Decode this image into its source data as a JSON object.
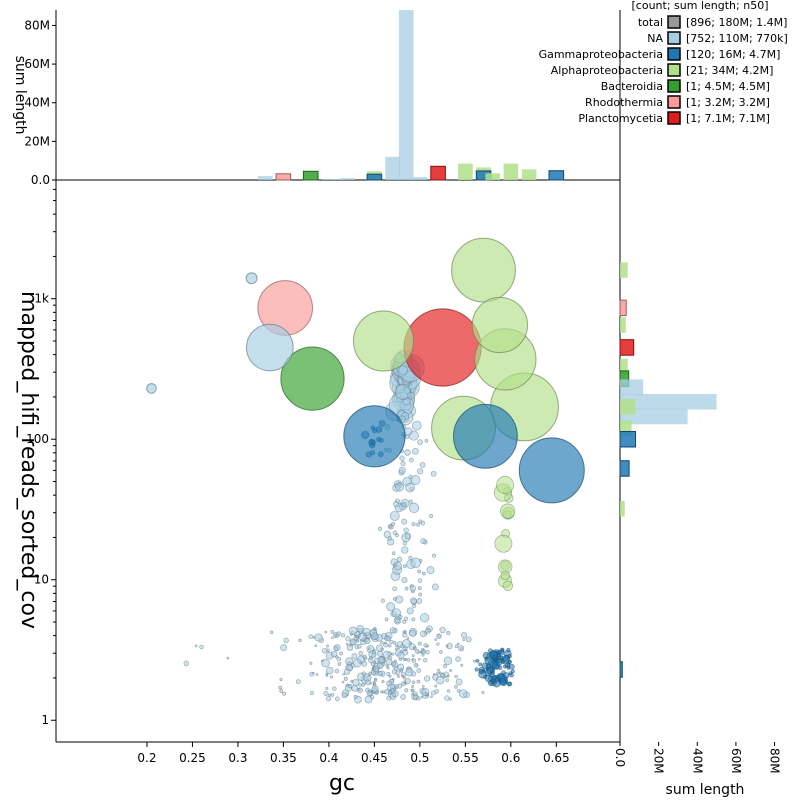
{
  "chart_data": {
    "type": "scatter",
    "title": "",
    "main": {
      "xlabel": "gc",
      "ylabel": "mapped_hifi_reads_sorted_cov",
      "xlim": [
        0.1,
        0.72
      ],
      "ylim_log": [
        0.7,
        7000
      ],
      "x_ticks": [
        "0.2",
        "0.25",
        "0.3",
        "0.35",
        "0.4",
        "0.45",
        "0.5",
        "0.55",
        "0.6",
        "0.65"
      ],
      "y_ticks": [
        "1",
        "10",
        "100",
        "1k"
      ],
      "y_tick_values": [
        1,
        10,
        100,
        1000
      ]
    },
    "top_histogram": {
      "ylabel": "sum length",
      "ylim": [
        0,
        88
      ],
      "y_ticks": [
        "0.0",
        "20M",
        "40M",
        "60M",
        "80M"
      ],
      "y_tick_values": [
        0,
        20,
        40,
        60,
        80
      ],
      "bins": [
        {
          "gc": 0.33,
          "value": 2.0,
          "series": "NA"
        },
        {
          "gc": 0.35,
          "value": 3.2,
          "series": "Rhodothermia"
        },
        {
          "gc": 0.38,
          "value": 4.5,
          "series": "Bacteroidia"
        },
        {
          "gc": 0.4,
          "value": 0.5,
          "series": "NA"
        },
        {
          "gc": 0.41,
          "value": 0.5,
          "series": "NA"
        },
        {
          "gc": 0.42,
          "value": 1.0,
          "series": "NA"
        },
        {
          "gc": 0.45,
          "value": 4.5,
          "series": "Alphaproteobacteria"
        },
        {
          "gc": 0.45,
          "value": 3.0,
          "series": "Gammaproteobacteria"
        },
        {
          "gc": 0.47,
          "value": 12.0,
          "series": "NA"
        },
        {
          "gc": 0.485,
          "value": 88.0,
          "series": "NA"
        },
        {
          "gc": 0.5,
          "value": 1.5,
          "series": "NA"
        },
        {
          "gc": 0.52,
          "value": 7.1,
          "series": "Planctomycetia"
        },
        {
          "gc": 0.55,
          "value": 8.5,
          "series": "Alphaproteobacteria"
        },
        {
          "gc": 0.57,
          "value": 6.5,
          "series": "Alphaproteobacteria"
        },
        {
          "gc": 0.57,
          "value": 4.7,
          "series": "Gammaproteobacteria"
        },
        {
          "gc": 0.58,
          "value": 3.5,
          "series": "Alphaproteobacteria"
        },
        {
          "gc": 0.6,
          "value": 8.5,
          "series": "Alphaproteobacteria"
        },
        {
          "gc": 0.62,
          "value": 5.5,
          "series": "Alphaproteobacteria"
        },
        {
          "gc": 0.65,
          "value": 4.8,
          "series": "Gammaproteobacteria"
        }
      ]
    },
    "right_histogram": {
      "xlabel": "sum length",
      "xlim": [
        0,
        88
      ],
      "x_ticks": [
        "0.0",
        "20M",
        "40M",
        "60M",
        "80M"
      ],
      "x_tick_values": [
        0,
        20,
        40,
        60,
        80
      ],
      "bins": [
        {
          "cov": 1600,
          "value": 4.0,
          "series": "Alphaproteobacteria"
        },
        {
          "cov": 860,
          "value": 3.2,
          "series": "Rhodothermia"
        },
        {
          "cov": 650,
          "value": 3.0,
          "series": "Alphaproteobacteria"
        },
        {
          "cov": 450,
          "value": 7.1,
          "series": "Planctomycetia"
        },
        {
          "cov": 330,
          "value": 4.0,
          "series": "Alphaproteobacteria"
        },
        {
          "cov": 270,
          "value": 4.5,
          "series": "Bacteroidia"
        },
        {
          "cov": 235,
          "value": 12.0,
          "series": "NA"
        },
        {
          "cov": 185,
          "value": 50.0,
          "series": "NA"
        },
        {
          "cov": 145,
          "value": 35.0,
          "series": "NA"
        },
        {
          "cov": 170,
          "value": 8.0,
          "series": "Alphaproteobacteria"
        },
        {
          "cov": 120,
          "value": 6.0,
          "series": "Alphaproteobacteria"
        },
        {
          "cov": 100,
          "value": 8.0,
          "series": "Gammaproteobacteria"
        },
        {
          "cov": 62,
          "value": 4.7,
          "series": "Gammaproteobacteria"
        },
        {
          "cov": 32,
          "value": 2.5,
          "series": "Alphaproteobacteria"
        },
        {
          "cov": 2.3,
          "value": 1.2,
          "series": "Gammaproteobacteria"
        }
      ]
    },
    "legend": {
      "header": "[count; sum length; n50]",
      "position": "top-right",
      "entries": [
        {
          "name": "total",
          "stats": "[896; 180M; 1.4M]"
        },
        {
          "name": "NA",
          "stats": "[752; 110M; 770k]"
        },
        {
          "name": "Gammaproteobacteria",
          "stats": "[120; 16M; 4.7M]"
        },
        {
          "name": "Alphaproteobacteria",
          "stats": "[21; 34M; 4.2M]"
        },
        {
          "name": "Bacteroidia",
          "stats": "[1; 4.5M; 4.5M]"
        },
        {
          "name": "Rhodothermia",
          "stats": "[1; 3.2M; 3.2M]"
        },
        {
          "name": "Planctomycetia",
          "stats": "[1; 7.1M; 7.1M]"
        }
      ]
    },
    "series_colors": {
      "total": "#999999",
      "NA": "#a6cee3",
      "Gammaproteobacteria": "#1f78b4",
      "Alphaproteobacteria": "#b2df8a",
      "Bacteroidia": "#33a02c",
      "Rhodothermia": "#fb9a99",
      "Planctomycetia": "#e31a1c"
    },
    "large_points": [
      {
        "series": "Alphaproteobacteria",
        "gc": 0.57,
        "cov": 1600,
        "size_mb": 4.6
      },
      {
        "series": "Rhodothermia",
        "gc": 0.352,
        "cov": 860,
        "size_mb": 3.2
      },
      {
        "series": "Alphaproteobacteria",
        "gc": 0.588,
        "cov": 650,
        "size_mb": 3.3
      },
      {
        "series": "NA",
        "gc": 0.335,
        "cov": 450,
        "size_mb": 2.2
      },
      {
        "series": "Alphaproteobacteria",
        "gc": 0.46,
        "cov": 500,
        "size_mb": 4.0
      },
      {
        "series": "Planctomycetia",
        "gc": 0.525,
        "cov": 450,
        "size_mb": 7.1
      },
      {
        "series": "Alphaproteobacteria",
        "gc": 0.594,
        "cov": 370,
        "size_mb": 4.2
      },
      {
        "series": "Bacteroidia",
        "gc": 0.382,
        "cov": 270,
        "size_mb": 4.5
      },
      {
        "series": "Alphaproteobacteria",
        "gc": 0.615,
        "cov": 170,
        "size_mb": 5.3
      },
      {
        "series": "Alphaproteobacteria",
        "gc": 0.548,
        "cov": 120,
        "size_mb": 4.6
      },
      {
        "series": "Gammaproteobacteria",
        "gc": 0.45,
        "cov": 105,
        "size_mb": 4.2
      },
      {
        "series": "Gammaproteobacteria",
        "gc": 0.572,
        "cov": 105,
        "size_mb": 4.6
      },
      {
        "series": "Gammaproteobacteria",
        "gc": 0.645,
        "cov": 60,
        "size_mb": 4.8
      },
      {
        "series": "NA",
        "gc": 0.315,
        "cov": 1400,
        "size_mb": 0.15
      },
      {
        "series": "NA",
        "gc": 0.205,
        "cov": 230,
        "size_mb": 0.08
      }
    ],
    "point_clouds": [
      {
        "series": "NA",
        "gc_center": 0.482,
        "gc_spread": 0.012,
        "cov_min": 140,
        "cov_max": 380,
        "count": 70,
        "size_min": 3,
        "size_max": 14
      },
      {
        "series": "NA",
        "gc_center": 0.485,
        "gc_spread": 0.04,
        "cov_min": 5,
        "cov_max": 140,
        "count": 110,
        "size_min": 1.5,
        "size_max": 5
      },
      {
        "series": "NA",
        "gc_center": 0.46,
        "gc_spread": 0.13,
        "cov_min": 1.4,
        "cov_max": 4.5,
        "count": 360,
        "size_min": 1,
        "size_max": 4
      },
      {
        "series": "NA",
        "gc_center": 0.3,
        "gc_spread": 0.12,
        "cov_min": 1.5,
        "cov_max": 5,
        "count": 10,
        "size_min": 1,
        "size_max": 2.5
      },
      {
        "series": "Gammaproteobacteria",
        "gc_center": 0.585,
        "gc_spread": 0.03,
        "cov_min": 1.8,
        "cov_max": 3.2,
        "count": 100,
        "size_min": 1.5,
        "size_max": 4
      },
      {
        "series": "Gammaproteobacteria",
        "gc_center": 0.45,
        "gc_spread": 0.015,
        "cov_min": 75,
        "cov_max": 130,
        "count": 14,
        "size_min": 2,
        "size_max": 4
      },
      {
        "series": "Alphaproteobacteria",
        "gc_center": 0.595,
        "gc_spread": 0.006,
        "cov_min": 7,
        "cov_max": 50,
        "count": 14,
        "size_min": 4,
        "size_max": 9
      }
    ]
  }
}
